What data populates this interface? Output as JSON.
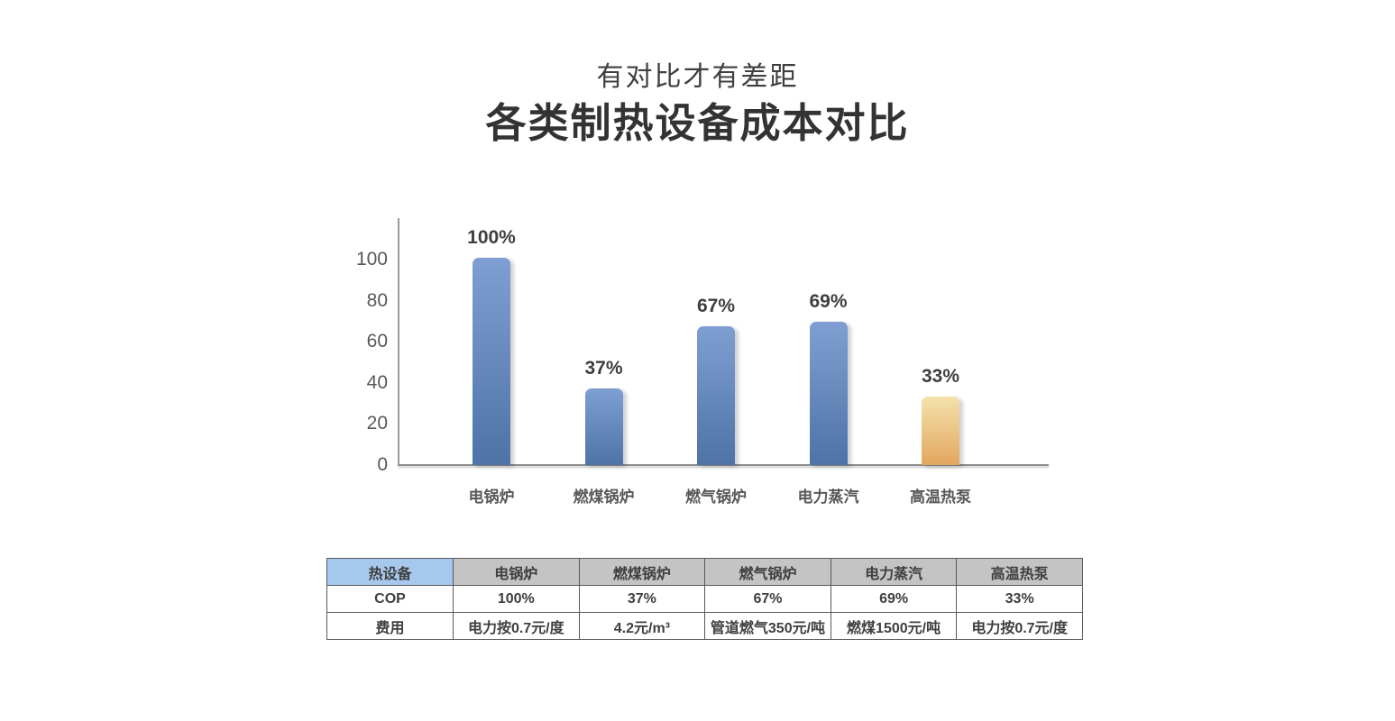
{
  "header": {
    "subtitle": "有对比才有差距",
    "title": "各类制热设备成本对比"
  },
  "chart_data": {
    "type": "bar",
    "title": "各类制热设备成本对比",
    "xlabel": "",
    "ylabel": "",
    "categories": [
      "电锅炉",
      "燃煤锅炉",
      "燃气锅炉",
      "电力蒸汽",
      "高温热泵"
    ],
    "values": [
      100,
      37,
      67,
      69,
      33
    ],
    "value_labels": [
      "100%",
      "37%",
      "67%",
      "69%",
      "33%"
    ],
    "yticks": [
      100,
      80,
      60,
      40,
      20,
      0
    ],
    "ylim": [
      0,
      115
    ],
    "grid": "off",
    "legend": "none",
    "highlight_index": 4,
    "colors": {
      "bar_top": "#7f9fd2",
      "bar_bottom": "#4e73a7",
      "highlight_top": "#f4e2ad",
      "highlight_bottom": "#e2a65d",
      "axis": "#9b9b9b",
      "tick_text": "#595959",
      "value_text": "#3f3f3f"
    }
  },
  "table": {
    "header_row": [
      "热设备",
      "电锅炉",
      "燃煤锅炉",
      "燃气锅炉",
      "电力蒸汽",
      "高温热泵"
    ],
    "rows": [
      {
        "label": "COP",
        "values": [
          "100%",
          "37%",
          "67%",
          "69%",
          "33%"
        ]
      },
      {
        "label": "费用",
        "values": [
          "电力按0.7元/度",
          "4.2元/m³",
          "管道燃气350元/吨",
          "燃煤1500元/吨",
          "电力按0.7元/度"
        ]
      }
    ],
    "colors": {
      "first_header_bg": "#a7c8ed",
      "header_bg": "#c4c4c4",
      "border": "#595959",
      "body_bg": "#ffffff"
    }
  }
}
